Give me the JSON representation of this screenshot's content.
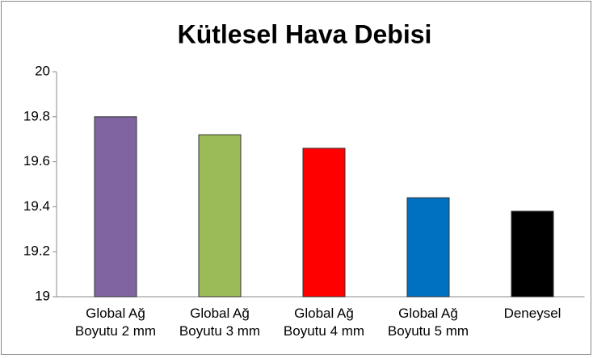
{
  "chart_data": {
    "type": "bar",
    "title": "Kütlesel Hava Debisi",
    "categories": [
      "Global Ağ\nBoyutu 2 mm",
      "Global Ağ\nBoyutu 3 mm",
      "Global Ağ\nBoyutu 4 mm",
      "Global Ağ\nBoyutu 5 mm",
      "Deneysel"
    ],
    "values": [
      19.8,
      19.72,
      19.66,
      19.44,
      19.38
    ],
    "colors": [
      "#8064a2",
      "#9bbb59",
      "#ff0000",
      "#0070c0",
      "#000000"
    ],
    "ylim": [
      19,
      20
    ],
    "yticks": [
      19,
      19.2,
      19.4,
      19.6,
      19.8,
      20
    ],
    "grid": false
  }
}
